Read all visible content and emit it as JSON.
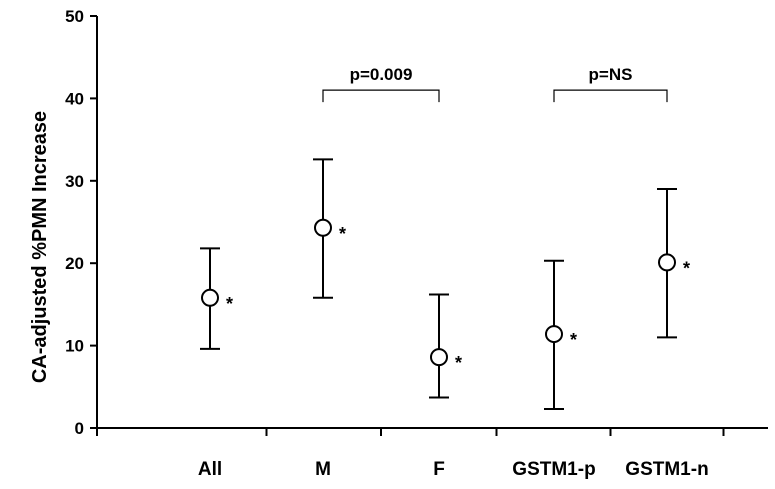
{
  "chart_data": {
    "type": "scatter",
    "title": "",
    "xlabel": "",
    "ylabel": "CA-adjusted %PMN Increase",
    "ylim": [
      0,
      50
    ],
    "yticks": [
      "0",
      "10",
      "20",
      "30",
      "40",
      "50"
    ],
    "grid": false,
    "categories": [
      "All",
      "M",
      "F",
      "GSTM1-p",
      "GSTM1-n"
    ],
    "points": [
      {
        "category": "All",
        "value": 15.8,
        "lower": 9.6,
        "upper": 21.8,
        "marker": "*"
      },
      {
        "category": "M",
        "value": 24.3,
        "lower": 15.8,
        "upper": 32.6,
        "marker": "*"
      },
      {
        "category": "F",
        "value": 8.6,
        "lower": 3.7,
        "upper": 16.2,
        "marker": "*"
      },
      {
        "category": "GSTM1-p",
        "value": 11.4,
        "lower": 2.3,
        "upper": 20.3,
        "marker": "*"
      },
      {
        "category": "GSTM1-n",
        "value": 20.1,
        "lower": 11.0,
        "upper": 29.0,
        "marker": "*"
      }
    ],
    "comparisons": [
      {
        "from": "M",
        "to": "F",
        "level": 41,
        "label": "p=0.009"
      },
      {
        "from": "GSTM1-p",
        "to": "GSTM1-n",
        "level": 41,
        "label": "p=NS"
      }
    ]
  }
}
